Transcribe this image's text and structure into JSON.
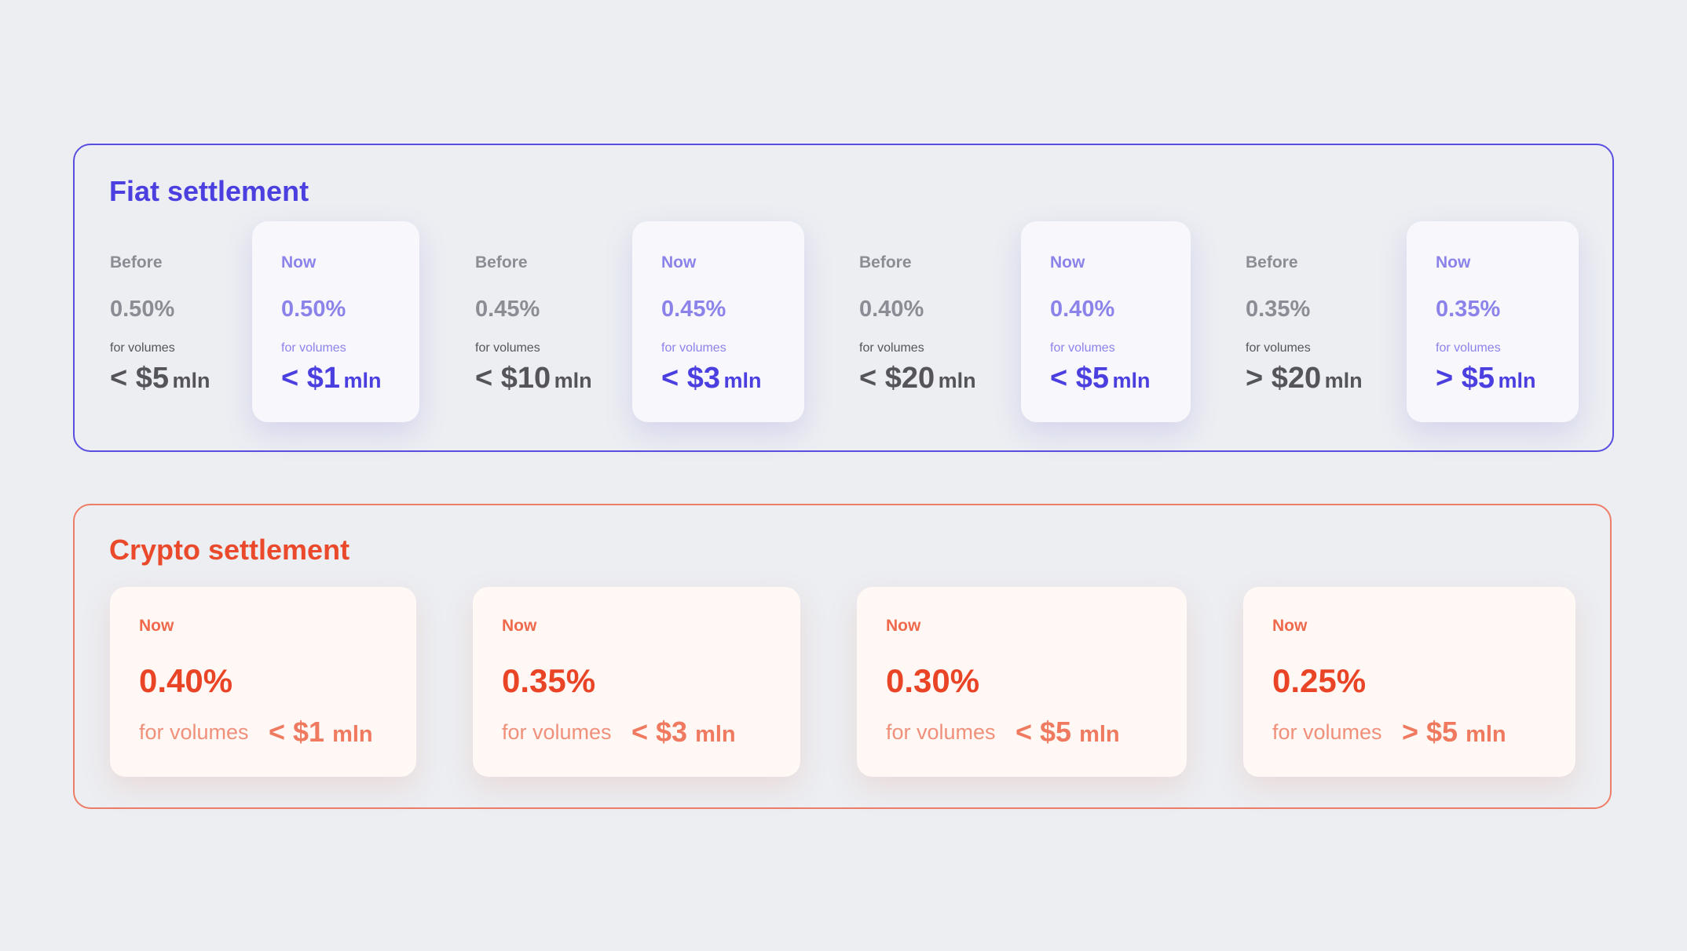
{
  "fiat": {
    "title": "Fiat settlement",
    "tiers": [
      {
        "before": {
          "label": "Before",
          "rate": "0.50%",
          "for_volumes": "for volumes",
          "amount": "< $5",
          "unit": "mln"
        },
        "now": {
          "label": "Now",
          "rate": "0.50%",
          "for_volumes": "for volumes",
          "amount": "< $1",
          "unit": "mln"
        }
      },
      {
        "before": {
          "label": "Before",
          "rate": "0.45%",
          "for_volumes": "for volumes",
          "amount": "< $10",
          "unit": "mln"
        },
        "now": {
          "label": "Now",
          "rate": "0.45%",
          "for_volumes": "for volumes",
          "amount": "< $3",
          "unit": "mln"
        }
      },
      {
        "before": {
          "label": "Before",
          "rate": "0.40%",
          "for_volumes": "for volumes",
          "amount": "< $20",
          "unit": "mln"
        },
        "now": {
          "label": "Now",
          "rate": "0.40%",
          "for_volumes": "for volumes",
          "amount": "< $5",
          "unit": "mln"
        }
      },
      {
        "before": {
          "label": "Before",
          "rate": "0.35%",
          "for_volumes": "for volumes",
          "amount": "> $20",
          "unit": "mln"
        },
        "now": {
          "label": "Now",
          "rate": "0.35%",
          "for_volumes": "for volumes",
          "amount": "> $5",
          "unit": "mln"
        }
      }
    ]
  },
  "crypto": {
    "title": "Crypto settlement",
    "cards": [
      {
        "label": "Now",
        "rate": "0.40%",
        "for_volumes": "for volumes",
        "amount": "< $1",
        "unit": "mln"
      },
      {
        "label": "Now",
        "rate": "0.35%",
        "for_volumes": "for volumes",
        "amount": "< $3",
        "unit": "mln"
      },
      {
        "label": "Now",
        "rate": "0.30%",
        "for_volumes": "for volumes",
        "amount": "< $5",
        "unit": "mln"
      },
      {
        "label": "Now",
        "rate": "0.25%",
        "for_volumes": "for volumes",
        "amount": "> $5",
        "unit": "mln"
      }
    ]
  },
  "colors": {
    "fiat_accent": "#4b3fe0",
    "crypto_accent": "#ea4426",
    "background": "#eceef2"
  }
}
